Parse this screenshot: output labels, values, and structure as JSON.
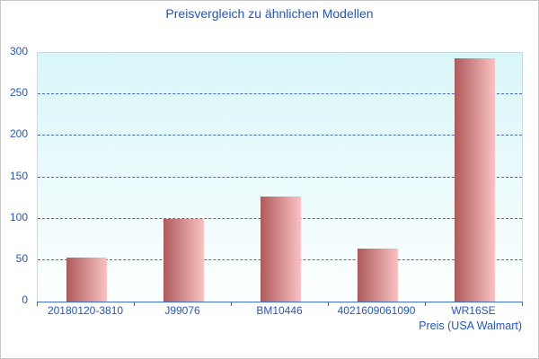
{
  "window": {
    "background": "#ffffff",
    "border_color": "#c8c8c8"
  },
  "chart_data": {
    "type": "bar",
    "title": "Preisvergleich zu ähnlichen Modellen",
    "categories": [
      "20180120-3810",
      "J99076",
      "BM10446",
      "4021609061090",
      "WR16SE"
    ],
    "values": [
      53,
      100,
      127,
      64,
      293
    ],
    "xlabel": "Preis (USA Walmart)",
    "ylabel": "",
    "ylim": [
      0,
      300
    ],
    "yticks": [
      0,
      50,
      100,
      150,
      200,
      250,
      300
    ],
    "gridline_values": [
      50,
      100,
      150,
      200,
      250
    ],
    "grid_style": "dashed",
    "legend": "none"
  },
  "colors": {
    "title_text": "#2155c8",
    "axis_text": "#2155c8",
    "grid_line": "#3f6bc6",
    "axis_line": "#3f6bc6",
    "plot_border": "#c9dce3",
    "plot_bg_top": "#d8f6f8",
    "plot_bg_bottom": "#fdffff",
    "bar_gradient_left": "#ae5a5a",
    "bar_gradient_right": "#fac2c2",
    "page_border": "#c8c8c8"
  }
}
